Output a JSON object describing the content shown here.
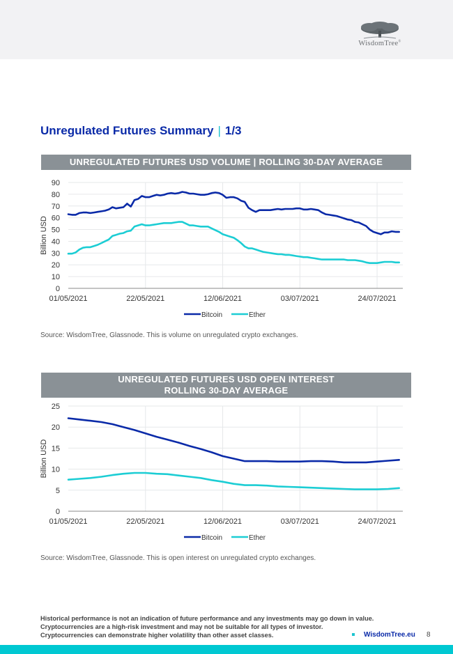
{
  "header": {
    "logo_text": "WisdomTree",
    "logo_registered": "®"
  },
  "page": {
    "title": "Unregulated Futures Summary",
    "title_separator": "|",
    "title_page": "1/3",
    "page_number": "8",
    "footer_link": "WisdomTree.eu"
  },
  "disclaimer": [
    "Historical performance is not an indication of future performance and any investments may go down in value.",
    "Cryptocurrencies are a high-risk investment and may not be suitable for all types of investor.",
    "Cryptocurrencies can demonstrate higher volatility than other asset classes."
  ],
  "colors": {
    "bitcoin": "#0a2aa8",
    "ether": "#1ccdd4",
    "accent": "#00c8d2",
    "banner": "#8a9196"
  },
  "chart_data": [
    {
      "type": "line",
      "title": "UNREGULATED FUTURES USD VOLUME | ROLLING 30-DAY AVERAGE",
      "title_lines": [
        "UNREGULATED FUTURES USD VOLUME | ROLLING 30-DAY AVERAGE"
      ],
      "xlabel": "",
      "ylabel": "Billion USD",
      "ylim": [
        0,
        90
      ],
      "yticks": [
        0,
        10,
        20,
        30,
        40,
        50,
        60,
        70,
        80,
        90
      ],
      "xtick_labels": [
        "01/05/2021",
        "22/05/2021",
        "12/06/2021",
        "03/07/2021",
        "24/07/2021"
      ],
      "xtick_days": [
        0,
        21,
        42,
        63,
        84
      ],
      "x_days_range": [
        0,
        91
      ],
      "grid": true,
      "legend": "bottom-center",
      "source": "Source: WisdomTree, Glassnode. This is volume on unregulated crypto exchanges.",
      "series": [
        {
          "name": "Bitcoin",
          "color": "#0a2aa8",
          "x_days": [
            0,
            1,
            2,
            3,
            4,
            5,
            6,
            7,
            8,
            9,
            10,
            11,
            12,
            13,
            14,
            15,
            16,
            17,
            18,
            19,
            20,
            21,
            22,
            23,
            24,
            25,
            26,
            27,
            28,
            29,
            30,
            31,
            32,
            33,
            34,
            35,
            36,
            37,
            38,
            39,
            40,
            41,
            42,
            43,
            44,
            45,
            46,
            47,
            48,
            49,
            50,
            51,
            52,
            53,
            54,
            55,
            56,
            57,
            58,
            59,
            60,
            61,
            62,
            63,
            64,
            65,
            66,
            67,
            68,
            69,
            70,
            71,
            72,
            73,
            74,
            75,
            76,
            77,
            78,
            79,
            80,
            81,
            82,
            83,
            84,
            85,
            86,
            87,
            88,
            89,
            90
          ],
          "values": [
            63,
            62.5,
            62.5,
            64,
            64.5,
            64.5,
            64,
            64.5,
            65,
            65.5,
            66,
            67,
            69,
            68,
            68.5,
            69,
            72,
            69.5,
            75,
            76,
            78.5,
            77.5,
            77.5,
            78.5,
            79.5,
            79,
            79.5,
            80.5,
            81,
            80.5,
            81,
            82,
            81.5,
            80.5,
            80.5,
            80,
            79.5,
            79.5,
            80,
            81,
            81.5,
            81,
            79.5,
            77,
            77.5,
            77.5,
            76.5,
            74.5,
            73.5,
            68.5,
            66.5,
            65,
            66.5,
            66.5,
            66.5,
            66.5,
            67,
            67.5,
            67,
            67.5,
            67.5,
            67.5,
            68,
            68,
            67,
            67,
            67.5,
            67,
            66.5,
            64.5,
            63,
            62.5,
            62,
            61.5,
            60.5,
            59.5,
            58.5,
            58,
            56.5,
            56,
            54.5,
            53,
            50,
            48,
            47,
            46,
            47.5,
            47.5,
            48.5,
            48,
            48
          ]
        },
        {
          "name": "Ether",
          "color": "#1ccdd4",
          "x_days": [
            0,
            1,
            2,
            3,
            4,
            5,
            6,
            7,
            8,
            9,
            10,
            11,
            12,
            13,
            14,
            15,
            16,
            17,
            18,
            19,
            20,
            21,
            22,
            23,
            24,
            25,
            26,
            27,
            28,
            29,
            30,
            31,
            32,
            33,
            34,
            35,
            36,
            37,
            38,
            39,
            40,
            41,
            42,
            43,
            44,
            45,
            46,
            47,
            48,
            49,
            50,
            51,
            52,
            53,
            54,
            55,
            56,
            57,
            58,
            59,
            60,
            61,
            62,
            63,
            64,
            65,
            66,
            67,
            68,
            69,
            70,
            71,
            72,
            73,
            74,
            75,
            76,
            77,
            78,
            79,
            80,
            81,
            82,
            83,
            84,
            85,
            86,
            87,
            88,
            89,
            90
          ],
          "values": [
            29.5,
            29.5,
            30.5,
            33,
            34.5,
            35,
            35,
            36,
            37,
            38.5,
            40,
            41.5,
            44.5,
            45.5,
            46.5,
            47,
            48.5,
            49,
            52.5,
            53.5,
            54.5,
            53.5,
            53.5,
            54,
            54.5,
            55,
            55.5,
            55.5,
            55.5,
            56,
            56.5,
            56.5,
            55,
            53.5,
            53.5,
            53,
            52.5,
            52.5,
            52.5,
            51,
            49.5,
            48,
            46,
            45,
            44,
            43,
            41,
            38.5,
            35.5,
            34,
            34,
            33,
            32,
            31,
            30.5,
            30,
            29.5,
            29,
            29,
            28.5,
            28.5,
            28,
            27.5,
            27,
            26.5,
            26.5,
            26,
            25.5,
            25,
            24.5,
            24.5,
            24.5,
            24.5,
            24.5,
            24.5,
            24.5,
            24,
            24,
            24,
            23.5,
            23,
            22,
            21.5,
            21.5,
            21.5,
            22,
            22.5,
            22.5,
            22.5,
            22,
            22
          ]
        }
      ]
    },
    {
      "type": "line",
      "title": "UNREGULATED FUTURES USD OPEN INTEREST ROLLING 30-DAY AVERAGE",
      "title_lines": [
        "UNREGULATED FUTURES USD OPEN INTEREST",
        "ROLLING 30-DAY AVERAGE"
      ],
      "xlabel": "",
      "ylabel": "Billion USD",
      "ylim": [
        0,
        25
      ],
      "yticks": [
        0,
        5,
        10,
        15,
        20,
        25
      ],
      "xtick_labels": [
        "01/05/2021",
        "22/05/2021",
        "12/06/2021",
        "03/07/2021",
        "24/07/2021"
      ],
      "xtick_days": [
        0,
        21,
        42,
        63,
        84
      ],
      "x_days_range": [
        0,
        91
      ],
      "grid": true,
      "legend": "bottom-center",
      "source": "Source: WisdomTree, Glassnode. This is open interest on unregulated crypto exchanges.",
      "series": [
        {
          "name": "Bitcoin",
          "color": "#0a2aa8",
          "x_days": [
            0,
            3,
            6,
            9,
            12,
            15,
            18,
            21,
            24,
            27,
            30,
            33,
            36,
            39,
            42,
            45,
            48,
            51,
            54,
            57,
            60,
            63,
            66,
            69,
            72,
            75,
            78,
            81,
            84,
            87,
            90
          ],
          "values": [
            22.1,
            21.8,
            21.5,
            21.2,
            20.7,
            20,
            19.3,
            18.5,
            17.7,
            17,
            16.3,
            15.5,
            14.8,
            14,
            13.1,
            12.5,
            11.9,
            11.9,
            11.9,
            11.8,
            11.8,
            11.8,
            11.9,
            11.9,
            11.8,
            11.6,
            11.6,
            11.6,
            11.8,
            12,
            12.2
          ]
        },
        {
          "name": "Ether",
          "color": "#1ccdd4",
          "x_days": [
            0,
            3,
            6,
            9,
            12,
            15,
            18,
            21,
            24,
            27,
            30,
            33,
            36,
            39,
            42,
            45,
            48,
            51,
            54,
            57,
            60,
            63,
            66,
            69,
            72,
            75,
            78,
            81,
            84,
            87,
            90
          ],
          "values": [
            7.5,
            7.7,
            7.9,
            8.2,
            8.6,
            8.9,
            9.1,
            9.1,
            8.9,
            8.8,
            8.5,
            8.2,
            7.9,
            7.4,
            7,
            6.5,
            6.2,
            6.2,
            6.1,
            5.9,
            5.8,
            5.7,
            5.6,
            5.5,
            5.4,
            5.3,
            5.2,
            5.2,
            5.2,
            5.3,
            5.5
          ]
        }
      ]
    }
  ]
}
